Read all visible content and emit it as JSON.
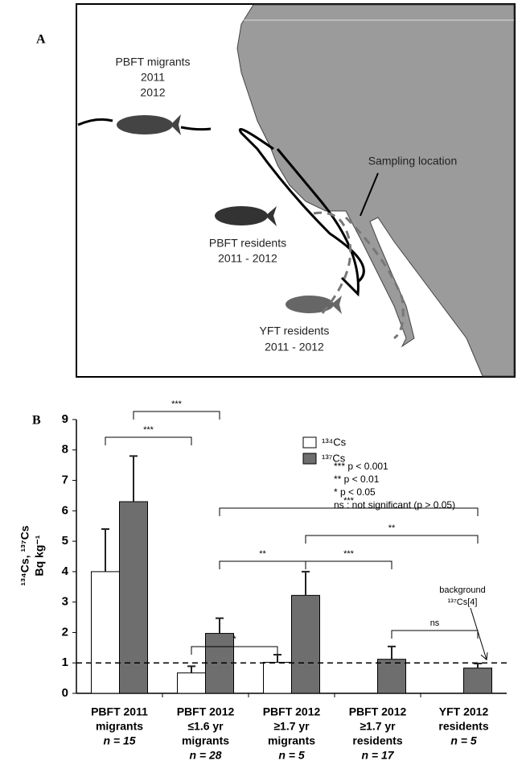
{
  "map": {
    "panel_label": "A",
    "migrants": [
      "PBFT migrants",
      "2011",
      "2012"
    ],
    "sampling": "Sampling location",
    "pbft_residents": [
      "PBFT residents",
      "2011 - 2012"
    ],
    "yft_residents": [
      "YFT residents",
      "2011 - 2012"
    ]
  },
  "chart_data": {
    "type": "bar",
    "panel_label": "B",
    "ylabel": [
      "¹³⁴Cs, ¹³⁷Cs",
      "Bq kg⁻¹"
    ],
    "categories": [
      [
        "PBFT 2011",
        "migrants",
        "n = 15"
      ],
      [
        "PBFT 2012",
        "≤1.6 yr",
        "migrants",
        "n = 28"
      ],
      [
        "PBFT 2012",
        "≥1.7 yr",
        "migrants",
        "n = 5"
      ],
      [
        "PBFT 2012",
        "≥1.7 yr",
        "residents",
        "n = 17"
      ],
      [
        "YFT 2012",
        "residents",
        "n = 5"
      ]
    ],
    "series": [
      {
        "name": "¹³⁴Cs",
        "color": "#ffffff",
        "values": [
          4.0,
          0.67,
          1.02,
          null,
          null
        ],
        "errors": [
          1.4,
          0.22,
          0.25,
          null,
          null
        ]
      },
      {
        "name": "¹³⁷Cs",
        "color": "#6e6e6e",
        "values": [
          6.3,
          1.97,
          3.22,
          1.12,
          0.83
        ],
        "errors": [
          1.5,
          0.5,
          0.78,
          0.42,
          0.15
        ]
      }
    ],
    "ylim": [
      0,
      9
    ],
    "yticks": [
      0,
      1,
      2,
      3,
      4,
      5,
      6,
      7,
      8,
      9
    ],
    "reference_line": 1,
    "reference_label": [
      "background",
      "¹³⁷Cs[4]"
    ],
    "significance": [
      "***",
      "***",
      "***",
      "**",
      "**",
      "***",
      "*",
      "ns"
    ],
    "key": [
      "*** p < 0.001",
      "** p < 0.01",
      "* p < 0.05",
      "ns : not significant (p > 0.05)"
    ]
  }
}
